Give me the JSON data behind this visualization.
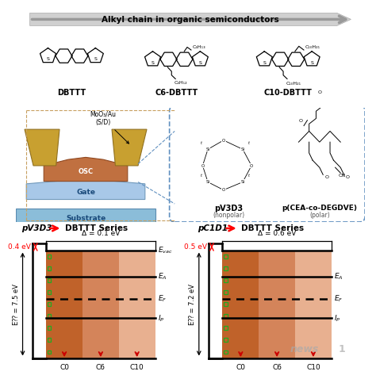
{
  "title": "Alkyl chain in organic semiconductors",
  "molecule_labels": [
    "DBTTT",
    "C6-DBTTT",
    "C10-DBTTT"
  ],
  "polymer_labels": [
    "pV3D3",
    "p(CEA-co-DEGDVE)"
  ],
  "polymer_sublabels": [
    "(nonpolar)",
    "(polar)"
  ],
  "left_chart_title": "pV3D3",
  "left_chart_arrow": "DBTTT Series",
  "left_delta": "Δ = 0.1 eV",
  "left_shift": "0.4 eV",
  "left_Eg": "E⁇ = 7.5 eV",
  "right_chart_title": "pC1D1",
  "right_chart_arrow": "DBTTT Series",
  "right_delta": "Δ = 0.6 eV",
  "right_shift": "0.5 eV",
  "right_Eg": "E⁇ = 7.2 eV",
  "energy_labels_left": [
    "E$_{vac}$",
    "E$_A$",
    "E$_F$",
    "I$_P$"
  ],
  "energy_labels_right": [
    "E$_A$",
    "E$_F$",
    "I$_P$"
  ],
  "x_labels": [
    "C0",
    "C6",
    "C10"
  ],
  "bar_color_0": "#c0622a",
  "bar_color_1": "#d4845a",
  "bar_color_2": "#e8b090",
  "top_border_color": "#c8a060",
  "mid_border_color": "#6090c0",
  "arrow_gray": "#888888"
}
